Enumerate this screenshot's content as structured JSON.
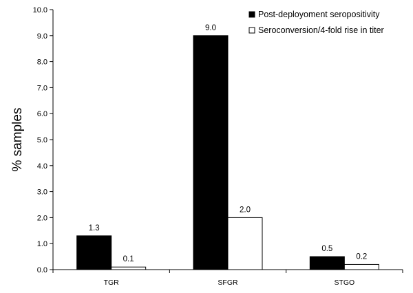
{
  "chart_data": {
    "type": "bar",
    "categories": [
      "TGR",
      "SFGR",
      "STGO"
    ],
    "series": [
      {
        "name": "Post-deployoment seropositivity",
        "values": [
          1.3,
          9.0,
          0.5
        ],
        "labels": [
          "1.3",
          "9.0",
          "0.5"
        ],
        "color": "#000000"
      },
      {
        "name": "Seroconversion/4-fold rise in titer",
        "values": [
          0.1,
          2.0,
          0.2
        ],
        "labels": [
          "0.1",
          "2.0",
          "0.2"
        ],
        "color": "#ffffff"
      }
    ],
    "ylabel": "% samples",
    "ylim": [
      0,
      10
    ],
    "yticks": [
      "0.0",
      "1.0",
      "2.0",
      "3.0",
      "4.0",
      "5.0",
      "6.0",
      "7.0",
      "8.0",
      "9.0",
      "10.0"
    ],
    "grid": false,
    "legend_position": "top-right"
  }
}
